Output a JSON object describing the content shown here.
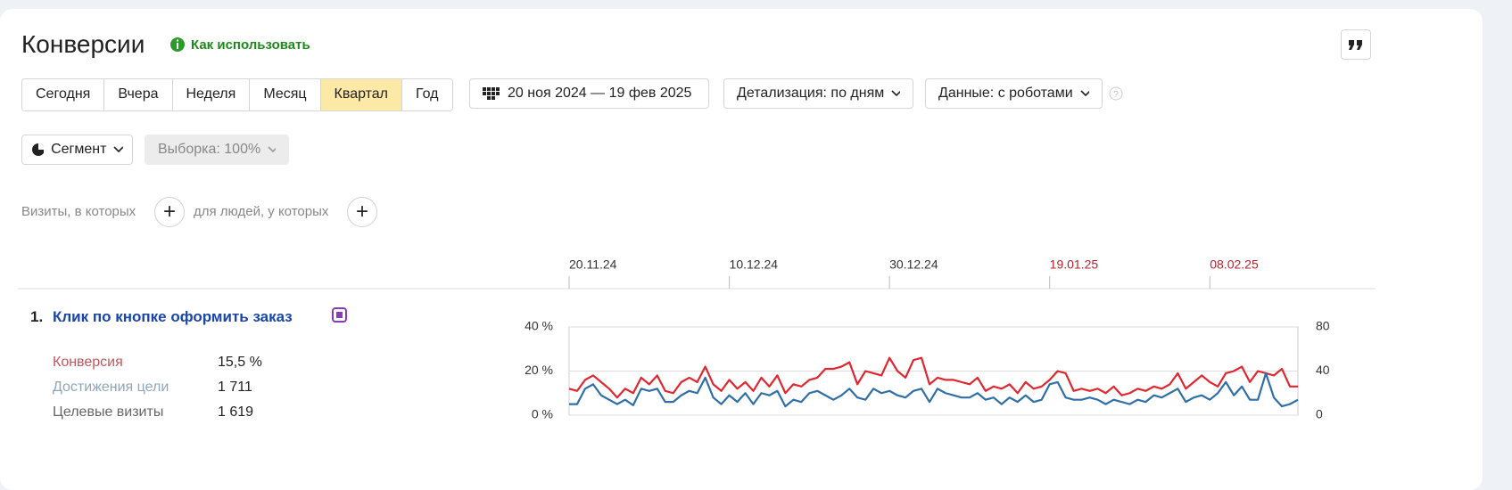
{
  "header": {
    "title": "Конверсии",
    "help_link": "Как использовать"
  },
  "periods": [
    "Сегодня",
    "Вчера",
    "Неделя",
    "Месяц",
    "Квартал",
    "Год"
  ],
  "active_period": 4,
  "date_range": "20 ноя 2024 — 19 фев 2025",
  "detail": "Детализация: по дням",
  "data_mode": "Данные: с роботами",
  "segment": "Сегмент",
  "sample": "Выборка: 100%",
  "filters": {
    "visits": "Визиты, в которых",
    "people": "для людей, у которых"
  },
  "goal": {
    "number": "1.",
    "name": "Клик по кнопке оформить заказ",
    "metrics": [
      {
        "label": "Конверсия",
        "value": "15,5 %"
      },
      {
        "label": "Достижения цели",
        "value": "1 711"
      },
      {
        "label": "Целевые визиты",
        "value": "1 619"
      }
    ]
  },
  "chart_data": {
    "type": "line",
    "categories": [
      "20.11.24",
      null,
      null,
      null,
      null,
      null,
      null,
      null,
      null,
      null,
      null,
      null,
      null,
      null,
      null,
      null,
      null,
      null,
      null,
      null,
      "10.12.24",
      null,
      null,
      null,
      null,
      null,
      null,
      null,
      null,
      null,
      null,
      null,
      null,
      null,
      null,
      null,
      null,
      null,
      null,
      null,
      "30.12.24",
      null,
      null,
      null,
      null,
      null,
      null,
      null,
      null,
      null,
      null,
      null,
      null,
      null,
      null,
      null,
      null,
      null,
      null,
      null,
      "19.01.25",
      null,
      null,
      null,
      null,
      null,
      null,
      null,
      null,
      null,
      null,
      null,
      null,
      null,
      null,
      null,
      null,
      null,
      null,
      null,
      "08.02.25",
      null,
      null,
      null,
      null,
      null,
      null,
      null,
      null,
      null,
      null,
      null
    ],
    "series": [
      {
        "color": "#e0262f",
        "values": [
          12,
          11,
          16,
          18,
          15,
          12,
          8,
          12,
          10,
          17,
          14,
          18,
          11,
          10,
          15,
          17,
          15,
          22,
          14,
          11,
          16,
          12,
          15,
          11,
          17,
          13,
          18,
          10,
          14,
          13,
          16,
          17,
          21,
          21,
          22,
          24,
          14,
          20,
          19,
          18,
          26,
          20,
          17,
          25,
          26,
          14,
          17,
          16,
          16,
          15,
          14,
          17,
          11,
          13,
          12,
          14,
          10,
          15,
          12,
          13,
          16,
          20,
          19,
          11,
          12,
          11,
          12,
          10,
          13,
          9,
          10,
          12,
          11,
          13,
          12,
          14,
          19,
          12,
          15,
          18,
          15,
          13,
          19,
          20,
          22,
          15,
          20,
          19,
          18,
          21,
          13,
          13
        ]
      },
      {
        "color": "#2f6fa8",
        "axis": "y2",
        "values": [
          10,
          10,
          24,
          28,
          18,
          14,
          10,
          14,
          9,
          24,
          22,
          24,
          12,
          12,
          18,
          22,
          20,
          34,
          16,
          10,
          18,
          12,
          20,
          10,
          20,
          18,
          22,
          8,
          14,
          12,
          20,
          22,
          18,
          14,
          18,
          24,
          16,
          14,
          24,
          20,
          22,
          18,
          16,
          22,
          24,
          12,
          24,
          20,
          18,
          16,
          16,
          20,
          14,
          16,
          10,
          16,
          12,
          18,
          12,
          14,
          28,
          30,
          16,
          14,
          14,
          16,
          14,
          10,
          14,
          12,
          10,
          14,
          12,
          18,
          16,
          20,
          24,
          12,
          16,
          18,
          14,
          20,
          30,
          18,
          26,
          14,
          14,
          38,
          16,
          8,
          10,
          14
        ]
      }
    ],
    "ylim": [
      0,
      40
    ],
    "yticks": [
      {
        "value": 0,
        "label": "0 %"
      },
      {
        "value": 20,
        "label": "20 %"
      },
      {
        "value": 40,
        "label": "40 %"
      }
    ],
    "y2lim": [
      0,
      80
    ],
    "y2ticks": [
      0,
      40,
      80
    ],
    "grid": true
  }
}
